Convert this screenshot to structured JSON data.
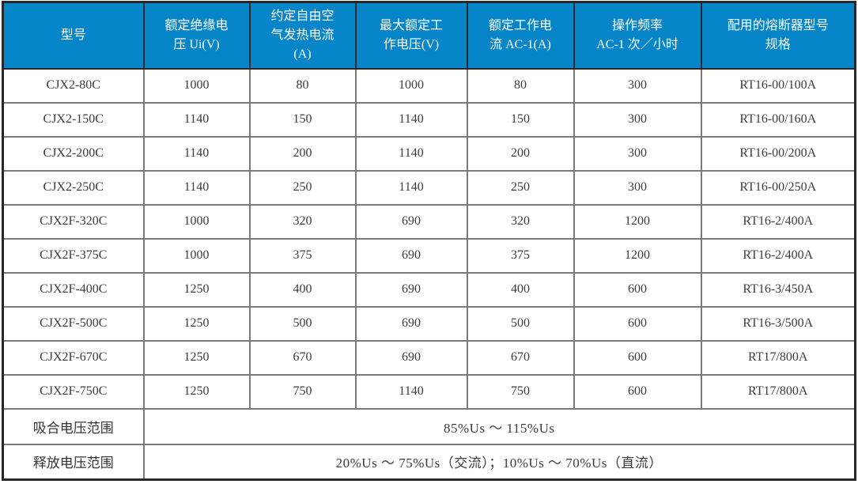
{
  "colors": {
    "header_bg": "#0685C8",
    "header_text": "#FFFFFF",
    "grid_line": "#7A7A7A",
    "frame_line": "#26282B",
    "body_text": "#3C3C3C"
  },
  "table": {
    "columns": [
      "型号",
      "额定绝缘电\n压 Ui(V)",
      "约定自由空\n气发热电流\n(A)",
      "最大额定工\n作电压(V)",
      "额定工作电\n流 AC-1(A)",
      "操作频率\nAC-1 次／小时",
      "配用的熔断器型号\n规格"
    ],
    "rows": [
      [
        "CJX2-80C",
        "1000",
        "80",
        "1000",
        "80",
        "300",
        "RT16-00/100A"
      ],
      [
        "CJX2-150C",
        "1140",
        "150",
        "1140",
        "150",
        "300",
        "RT16-00/160A"
      ],
      [
        "CJX2-200C",
        "1140",
        "200",
        "1140",
        "200",
        "300",
        "RT16-00/200A"
      ],
      [
        "CJX2-250C",
        "1140",
        "250",
        "1140",
        "250",
        "300",
        "RT16-00/250A"
      ],
      [
        "CJX2F-320C",
        "1000",
        "320",
        "690",
        "320",
        "1200",
        "RT16-2/400A"
      ],
      [
        "CJX2F-375C",
        "1000",
        "375",
        "690",
        "375",
        "1200",
        "RT16-2/400A"
      ],
      [
        "CJX2F-400C",
        "1250",
        "400",
        "690",
        "400",
        "600",
        "RT16-3/450A"
      ],
      [
        "CJX2F-500C",
        "1250",
        "500",
        "690",
        "500",
        "600",
        "RT16-3/500A"
      ],
      [
        "CJX2F-670C",
        "1250",
        "670",
        "690",
        "670",
        "600",
        "RT17/800A"
      ],
      [
        "CJX2F-750C",
        "1250",
        "750",
        "1140",
        "750",
        "600",
        "RT17/800A"
      ]
    ],
    "footer_rows": [
      {
        "label": "吸合电压范围",
        "value": "85%Us ～ 115%Us"
      },
      {
        "label": "释放电压范围",
        "value": "20%Us ～ 75%Us（交流）；10%Us ～ 70%Us（直流）"
      }
    ]
  }
}
